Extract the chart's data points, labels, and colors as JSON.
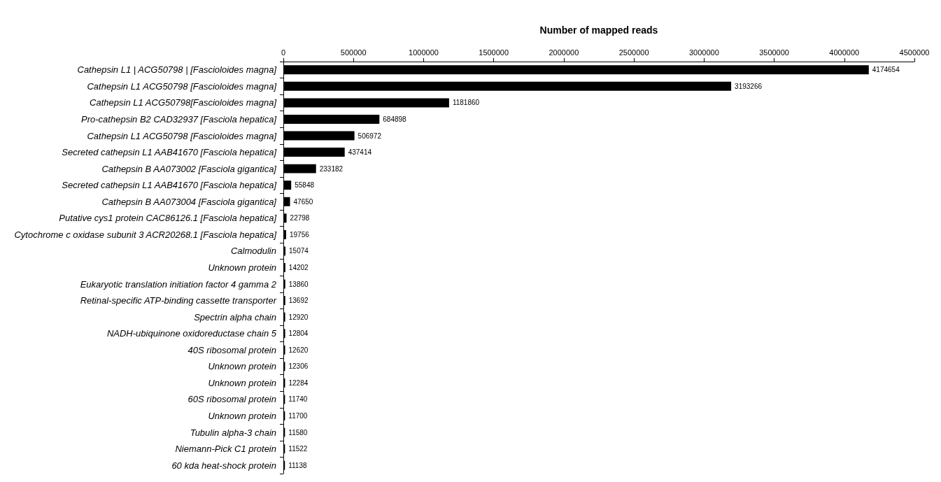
{
  "chart_data": {
    "type": "bar",
    "orientation": "horizontal",
    "xlabel": "Number of mapped reads",
    "categories": [
      "Cathepsin L1 | ACG50798 | [Fascioloides magna]",
      "Cathepsin L1 ACG50798 [Fascioloides magna]",
      "Cathepsin L1 ACG50798[Fascioloides magna]",
      "Pro-cathepsin B2 CAD32937 [Fasciola hepatica]",
      "Cathepsin L1 ACG50798 [Fascioloides magna]",
      "Secreted cathepsin L1 AAB41670 [Fasciola hepatica]",
      "Cathepsin B AA073002 [Fasciola gigantica]",
      "Secreted cathepsin L1 AAB41670 [Fasciola hepatica]",
      "Cathepsin B AA073004 [Fasciola gigantica]",
      "Putative cys1 protein CAC86126.1 [Fasciola hepatica]",
      "Cytochrome c oxidase subunit 3 ACR20268.1 [Fasciola hepatica]",
      "Calmodulin",
      "Unknown protein",
      "Eukaryotic translation initiation factor 4 gamma 2",
      "Retinal-specific ATP-binding cassette transporter",
      "Spectrin alpha chain",
      "NADH-ubiquinone oxidoreductase chain 5",
      "40S ribosomal protein",
      "Unknown protein",
      "Unknown protein",
      "60S ribosomal protein",
      "Unknown protein",
      "Tubulin alpha-3 chain",
      "Niemann-Pick C1 protein",
      "60 kda heat-shock protein"
    ],
    "values": [
      4174654,
      3193266,
      1181860,
      684898,
      506972,
      437414,
      233182,
      55848,
      47650,
      22798,
      19756,
      15074,
      14202,
      13860,
      13692,
      12920,
      12804,
      12620,
      12306,
      12284,
      11740,
      11700,
      11580,
      11522,
      11138
    ],
    "color": "#000000",
    "data_labels": true,
    "grid": false,
    "xlim": [
      0,
      4500000
    ],
    "xticks": [
      0,
      500000,
      1000000,
      1500000,
      2000000,
      2500000,
      3000000,
      3500000,
      4000000,
      4500000
    ]
  }
}
